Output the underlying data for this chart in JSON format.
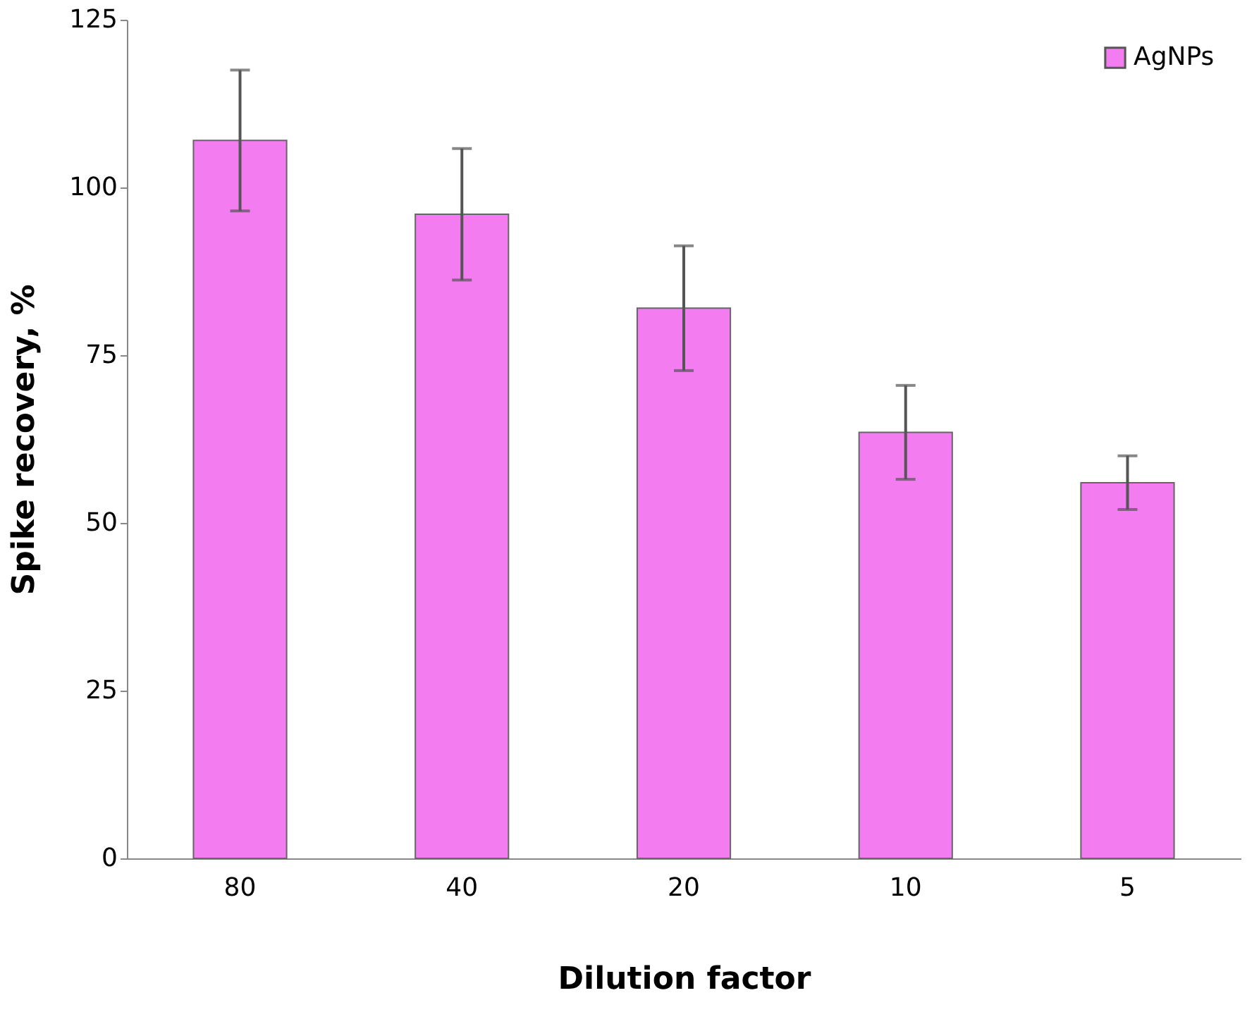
{
  "chart_data": {
    "type": "bar",
    "xlabel": "Dilution factor",
    "ylabel": "Spike recovery, %",
    "categories": [
      "80",
      "40",
      "20",
      "10",
      "5"
    ],
    "series": [
      {
        "name": "AgNPs",
        "color": "#f27cf0",
        "values": [
          107,
          96,
          82,
          63.5,
          56
        ],
        "errors": [
          10.5,
          9.8,
          9.3,
          7,
          4
        ]
      }
    ],
    "ylim": [
      0,
      125
    ],
    "yticks": [
      0,
      25,
      50,
      75,
      100,
      125
    ],
    "grid": false,
    "legend": "top right"
  }
}
